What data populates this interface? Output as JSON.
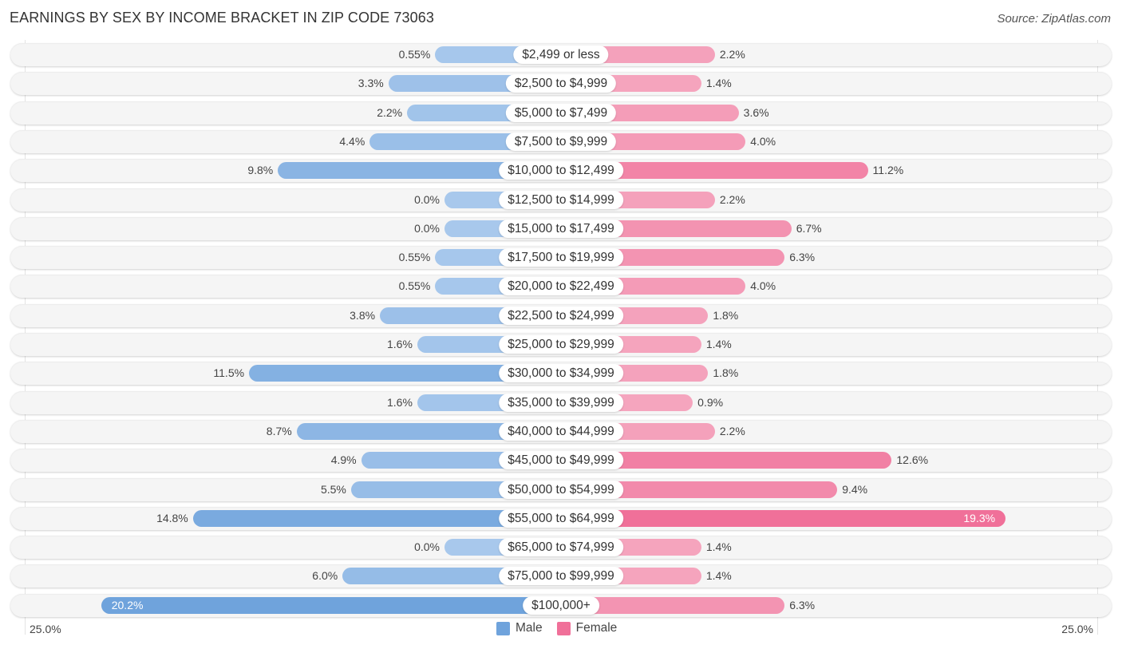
{
  "title": "EARNINGS BY SEX BY INCOME BRACKET IN ZIP CODE 73063",
  "source": "Source: ZipAtlas.com",
  "legend": {
    "male": "Male",
    "female": "Female"
  },
  "colors": {
    "male": "#6fa3dc",
    "male_light": "#a8c8ec",
    "female": "#f07099",
    "female_light": "#f5a8c0"
  },
  "chart_data": {
    "type": "bar",
    "orientation": "horizontal-diverging",
    "title": "EARNINGS BY SEX BY INCOME BRACKET IN ZIP CODE 73063",
    "xlabel": "",
    "ylabel": "",
    "axis_min_label": "25.0%",
    "axis_max_label": "25.0%",
    "xlim": [
      -25,
      25
    ],
    "legend_position": "bottom-center",
    "categories": [
      "$2,499 or less",
      "$2,500 to $4,999",
      "$5,000 to $7,499",
      "$7,500 to $9,999",
      "$10,000 to $12,499",
      "$12,500 to $14,999",
      "$15,000 to $17,499",
      "$17,500 to $19,999",
      "$20,000 to $22,499",
      "$22,500 to $24,999",
      "$25,000 to $29,999",
      "$30,000 to $34,999",
      "$35,000 to $39,999",
      "$40,000 to $44,999",
      "$45,000 to $49,999",
      "$50,000 to $54,999",
      "$55,000 to $64,999",
      "$65,000 to $74,999",
      "$75,000 to $99,999",
      "$100,000+"
    ],
    "series": [
      {
        "name": "Male",
        "values": [
          0.55,
          3.3,
          2.2,
          4.4,
          9.8,
          0.0,
          0.0,
          0.55,
          0.55,
          3.8,
          1.6,
          11.5,
          1.6,
          8.7,
          4.9,
          5.5,
          14.8,
          0.0,
          6.0,
          20.2
        ],
        "labels": [
          "0.55%",
          "3.3%",
          "2.2%",
          "4.4%",
          "9.8%",
          "0.0%",
          "0.0%",
          "0.55%",
          "0.55%",
          "3.8%",
          "1.6%",
          "11.5%",
          "1.6%",
          "8.7%",
          "4.9%",
          "5.5%",
          "14.8%",
          "0.0%",
          "6.0%",
          "20.2%"
        ]
      },
      {
        "name": "Female",
        "values": [
          2.2,
          1.4,
          3.6,
          4.0,
          11.2,
          2.2,
          6.7,
          6.3,
          4.0,
          1.8,
          1.4,
          1.8,
          0.9,
          2.2,
          12.6,
          9.4,
          19.3,
          1.4,
          1.4,
          6.3
        ],
        "labels": [
          "2.2%",
          "1.4%",
          "3.6%",
          "4.0%",
          "11.2%",
          "2.2%",
          "6.7%",
          "6.3%",
          "4.0%",
          "1.8%",
          "1.4%",
          "1.8%",
          "0.9%",
          "2.2%",
          "12.6%",
          "9.4%",
          "19.3%",
          "1.4%",
          "1.4%",
          "6.3%"
        ]
      }
    ]
  }
}
